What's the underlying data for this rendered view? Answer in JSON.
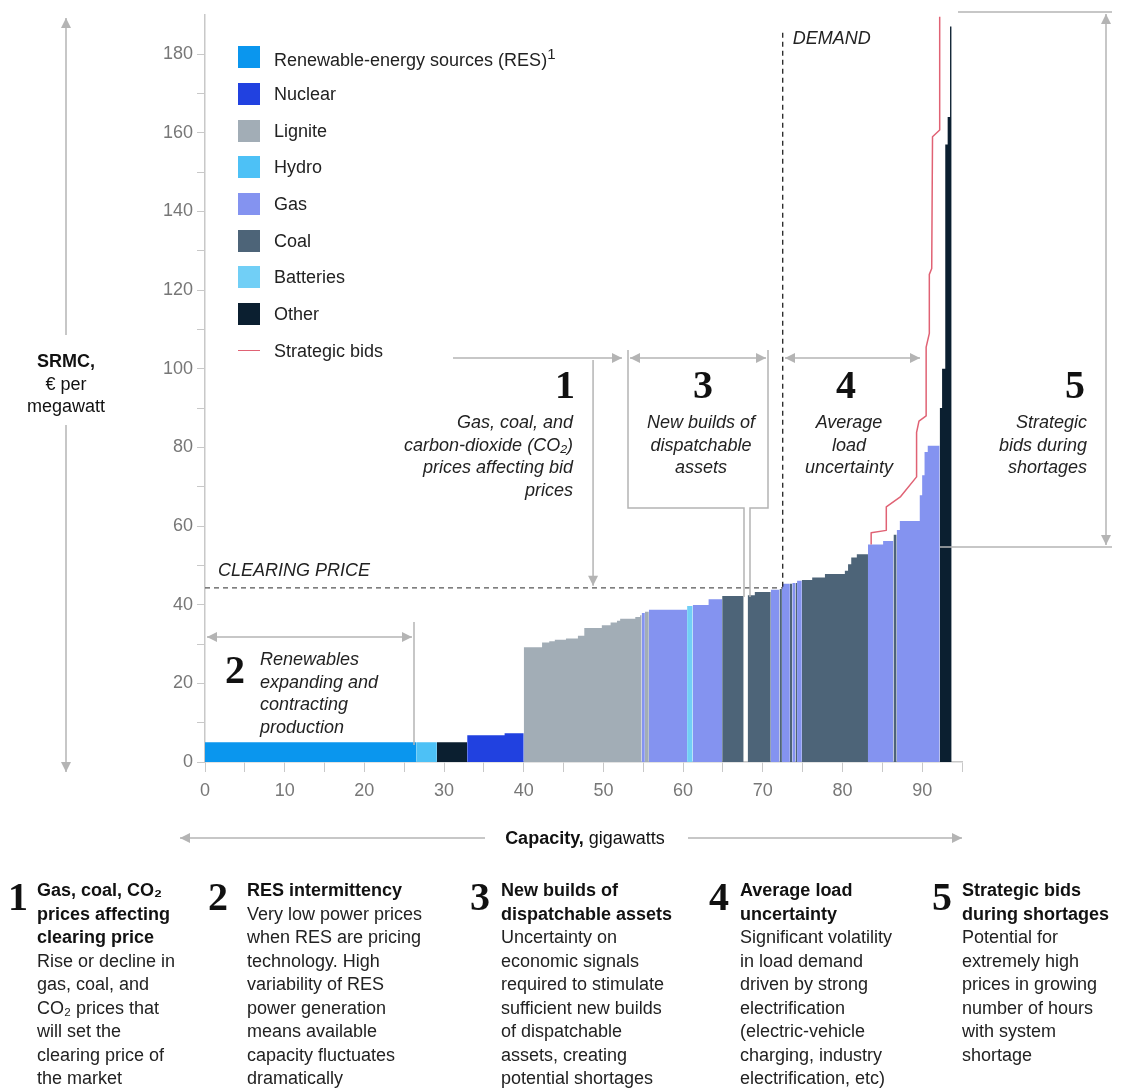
{
  "chart_data": {
    "type": "area",
    "xlabel": "Capacity, gigawatts",
    "ylabel": "SRMC, € per megawatt",
    "legend": "top left",
    "xlim": [
      0,
      95
    ],
    "xticks": [
      0,
      {
        "value": 5,
        "label": null
      },
      10,
      {
        "value": 15,
        "label": null
      },
      20,
      {
        "value": 25,
        "label": null
      },
      30,
      {
        "value": 35,
        "label": null
      },
      40,
      {
        "value": 45,
        "label": null
      },
      50,
      {
        "value": 55,
        "label": null
      },
      60,
      {
        "value": 65,
        "label": null
      },
      70,
      {
        "value": 75,
        "label": null
      },
      80,
      {
        "value": 85,
        "label": null
      },
      90,
      {
        "value": 95,
        "label": null
      }
    ],
    "ylim": [
      0,
      190
    ],
    "yticks": [
      0,
      {
        "value": 10,
        "label": null
      },
      20,
      {
        "value": 30,
        "label": null
      },
      40,
      {
        "value": 50,
        "label": null
      },
      60,
      {
        "value": 70,
        "label": null
      },
      80,
      {
        "value": 90,
        "label": null
      },
      100,
      {
        "value": 110,
        "label": null
      },
      120,
      {
        "value": 130,
        "label": null
      },
      140,
      {
        "value": 150,
        "label": null
      },
      160,
      {
        "value": 170,
        "label": null
      },
      180
    ],
    "series": [
      {
        "name": "Renewable-energy sources (RES)$^{1}$",
        "color": "#0a96ee",
        "x": [
          0,
          26.5
        ],
        "values": [
          5,
          5
        ]
      },
      {
        "name": "Nuclear",
        "color": "#2141e0",
        "x": [
          32.9,
          37.6,
          37.6,
          40
        ],
        "values": [
          6.8,
          6.8,
          7.3,
          7.3
        ]
      },
      {
        "name": "Lignite",
        "color": "#a2adb6",
        "x": [
          40,
          42.3,
          42.3,
          43.2,
          43.2,
          43.9,
          43.9,
          45.3,
          45.3,
          46.8,
          46.8,
          47.6,
          47.6,
          49.8,
          49.8,
          50.9,
          50.9,
          51.7,
          51.7,
          52.1,
          52.1,
          54,
          54,
          54.6,
          54.6,
          54.8
        ],
        "values": [
          29.2,
          29.2,
          30.4,
          30.4,
          30.7,
          30.7,
          31.1,
          31.1,
          31.4,
          31.4,
          32.1,
          32.1,
          34.1,
          34.1,
          34.8,
          34.8,
          35.5,
          35.5,
          35.9,
          35.9,
          36.4,
          36.4,
          36.9,
          36.9,
          37.3,
          37.3
        ]
      },
      {
        "name": "Hydro",
        "color": "#4dc1f6",
        "x": [
          26.5,
          29.1
        ],
        "values": [
          5,
          5
        ]
      },
      {
        "name": "Gas",
        "color": "#8493f0",
        "x": [
          54.8,
          55.2
        ],
        "values": [
          37.9,
          37.9
        ]
      },
      {
        "name": "Coal",
        "color": "#4d6478",
        "x": [
          64.9,
          67.6
        ],
        "values": [
          42.2,
          42.2
        ]
      },
      {
        "name": "Batteries",
        "color": "#71cff6",
        "x": [
          60.5,
          61.2
        ],
        "values": [
          39.7,
          39.7
        ]
      },
      {
        "name": "Other",
        "color": "#0b1f30",
        "x": [
          29.1,
          32.9
        ],
        "values": [
          5,
          5
        ]
      },
      {
        "name": "Strategic bids",
        "type": "line",
        "color": "#e06274",
        "x": [
          83.6,
          83.6,
          85.5,
          85.5,
          87.3,
          89.3,
          89.3,
          89.6,
          90.5,
          90.5,
          90.9,
          90.9,
          91.2,
          91.3,
          92.2,
          92.2
        ],
        "values": [
          55.3,
          58.3,
          58.9,
          64.9,
          67.5,
          72.5,
          83.8,
          86.7,
          88,
          105.5,
          109,
          124,
          125.5,
          159,
          160.7,
          189.5
        ]
      },
      {
        "color": "#a2adb6",
        "x": [
          55.2,
          55.7
        ],
        "values": [
          38.2,
          38.2
        ]
      },
      {
        "color": "#8493f0",
        "x": [
          55.7,
          60.5
        ],
        "values": [
          38.7,
          38.7
        ]
      },
      {
        "color": "#8493f0",
        "x": [
          61.2,
          63.2,
          63.2,
          64.9
        ],
        "values": [
          39.9,
          39.9,
          41.4,
          41.4
        ]
      },
      {
        "color": "#8493f0",
        "x": [
          71,
          72.1
        ],
        "values": [
          43.8,
          43.8
        ]
      },
      {
        "color": "#8493f0",
        "x": [
          72.4,
          73.4
        ],
        "values": [
          45.3,
          45.3
        ]
      },
      {
        "color": "#8493f0",
        "x": [
          73.7,
          74.1
        ],
        "values": [
          45.5,
          45.5
        ]
      },
      {
        "color": "#8493f0",
        "x": [
          74.3,
          74.9
        ],
        "values": [
          46.1,
          46.1
        ]
      },
      {
        "color": "#8493f0",
        "x": [
          83.2,
          85.1,
          85.1,
          86.4
        ],
        "values": [
          55.3,
          55.3,
          56.2,
          56.2
        ]
      },
      {
        "color": "#8493f0",
        "x": [
          86.8,
          87.2,
          87.2,
          89.7,
          89.7,
          90,
          90,
          90.3,
          90.3,
          90.7,
          90.7,
          92.2
        ],
        "values": [
          59,
          59,
          61.3,
          61.3,
          67.8,
          67.8,
          72.9,
          72.9,
          78.8,
          78.8,
          80.4,
          80.4
        ]
      },
      {
        "color": "#4d6478",
        "x": [
          68.1,
          69,
          69,
          71
        ],
        "values": [
          42.4,
          42.4,
          43.2,
          43.2
        ]
      },
      {
        "color": "#4d6478",
        "x": [
          72.1,
          72.4
        ],
        "values": [
          44,
          44
        ]
      },
      {
        "color": "#4d6478",
        "x": [
          73.4,
          73.7
        ],
        "values": [
          45.3,
          45.3
        ]
      },
      {
        "color": "#4d6478",
        "x": [
          74.1,
          74.3
        ],
        "values": [
          45.5,
          45.5
        ]
      },
      {
        "color": "#4d6478",
        "x": [
          74.9,
          76.2,
          76.2,
          77.8,
          77.8,
          80.3,
          80.3,
          80.7,
          80.7,
          81.1,
          81.1,
          81.8,
          81.8,
          83.2
        ],
        "values": [
          46.3,
          46.3,
          46.9,
          46.9,
          47.8,
          47.8,
          48.6,
          48.6,
          50.3,
          50.3,
          52,
          52,
          52.8,
          52.8
        ]
      },
      {
        "color": "#4d6478",
        "x": [
          86.4,
          86.8
        ],
        "values": [
          57.8,
          57.8
        ]
      },
      {
        "color": "#0b1f30",
        "x": [
          92.2,
          92.5,
          92.5,
          92.9,
          92.9,
          93.2,
          93.2,
          93.5,
          93.5,
          93.7
        ],
        "values": [
          90,
          90,
          100,
          100,
          157,
          157,
          164,
          164,
          187,
          187
        ]
      }
    ],
    "ref_lines": [
      {
        "axis": "y",
        "value": 44.3,
        "label": "CLEARING PRICE",
        "line_style": "dashed",
        "color": "#555555"
      },
      {
        "axis": "x",
        "value": 72.5,
        "label": "DEMAND",
        "line_style": "dashed",
        "color": "#222222"
      }
    ],
    "annotations": [
      {
        "text": "1",
        "x": 48.7,
        "y": 44.3
      },
      "Gas, coal, and carbon-dioxide (CO₂) prices affecting bid prices",
      "2",
      "Renewables expanding and contracting production",
      "3",
      "New builds of dispatchable assets",
      "4",
      "Average load uncertainty",
      "5",
      "Strategic bids during shortages",
      "1",
      "Gas, coal, CO₂ prices affecting clearing price",
      "Rise or decline in gas, coal, and CO₂ prices that will set the clearing price of the market",
      "2",
      "RES intermittency",
      "Very low power prices when RES are pricing technology. High variability of RES power generation means available capacity fluctuates dramatically",
      "3",
      "New builds of dispatchable assets",
      "Uncertainty on economic signals required to stimulate sufficient new builds of dispatchable assets, creating potential shortages",
      "4",
      "Average load uncertainty",
      "Significant volatility in load demand driven by strong electrification (electric-vehicle charging, industry electrification, etc)",
      "5",
      "Strategic bids during shortages",
      "Potential for extremely high prices in growing number of hours with system shortage"
    ]
  }
}
